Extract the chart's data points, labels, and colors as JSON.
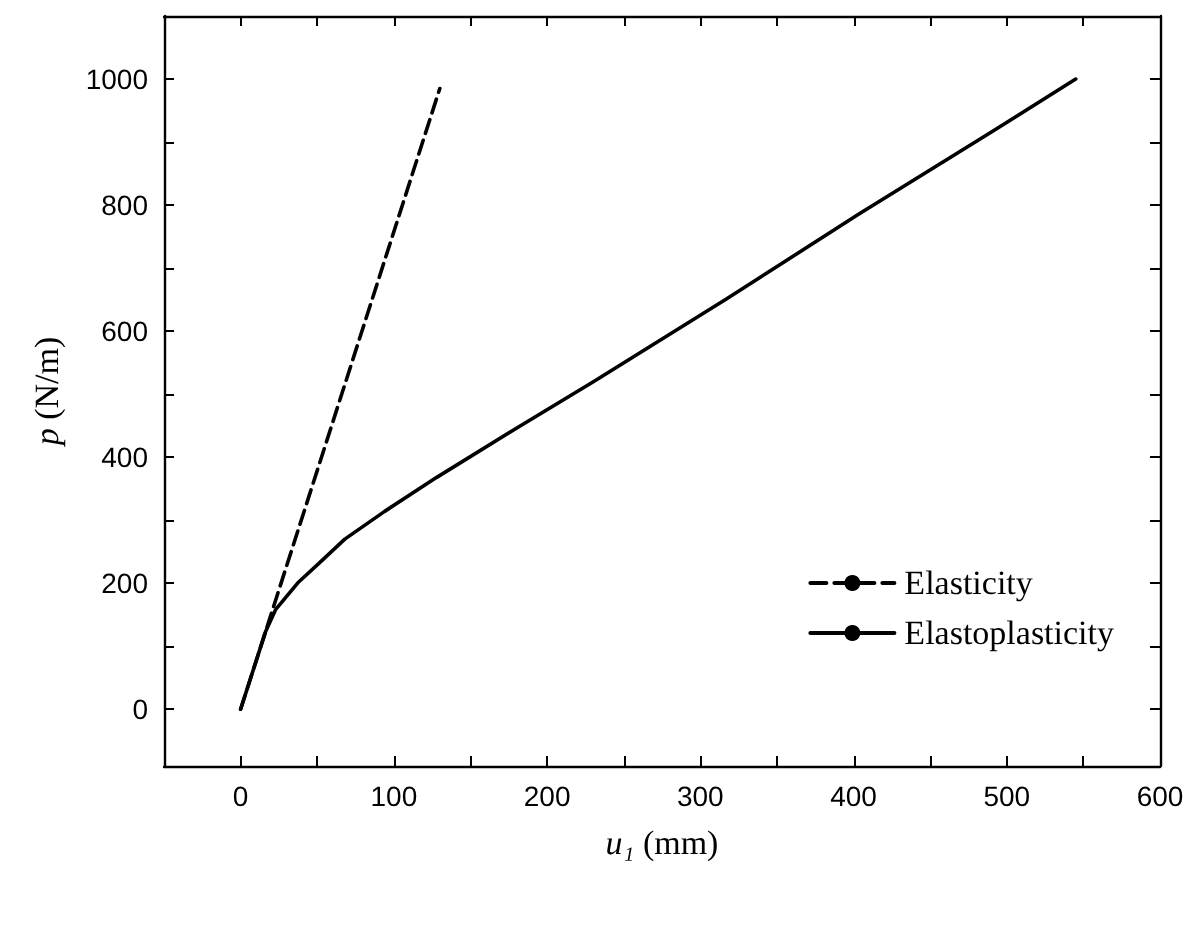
{
  "chart_data": {
    "type": "line",
    "xlabel": "u₁ (mm)",
    "ylabel": "p (N/m)",
    "xlim": [
      -50,
      600
    ],
    "xticks": [
      0,
      {
        "value": 50,
        "label": null
      },
      100,
      {
        "value": 150,
        "label": null
      },
      200,
      {
        "value": 250,
        "label": null
      },
      300,
      {
        "value": 350,
        "label": null
      },
      400,
      {
        "value": 450,
        "label": null
      },
      500,
      {
        "value": 550,
        "label": null
      },
      600
    ],
    "ylim": [
      -90,
      1100
    ],
    "yticks": [
      0,
      {
        "value": 100,
        "label": null
      },
      200,
      {
        "value": 300,
        "label": null
      },
      400,
      {
        "value": 500,
        "label": null
      },
      600,
      {
        "value": 700,
        "label": null
      },
      800,
      {
        "value": 900,
        "label": null
      },
      1000
    ],
    "grid": false,
    "legend": "right",
    "marker": "none",
    "series": [
      {
        "name": "Elasticity",
        "color": "#000000",
        "line_style": "dashed",
        "x": [
          0,
          130
        ],
        "values": [
          0,
          985
        ]
      },
      {
        "name": "Elastoplasticity",
        "color": "#000000",
        "line_style": "solid",
        "x": [
          0,
          16.4,
          22.8,
          37.9,
          50.9,
          68,
          94,
          128,
          180,
          231,
          317,
          403,
          490,
          545
        ],
        "values": [
          0,
          124,
          158,
          202,
          231,
          270,
          314,
          368,
          446,
          521,
          651,
          785,
          916,
          1000
        ]
      }
    ]
  }
}
